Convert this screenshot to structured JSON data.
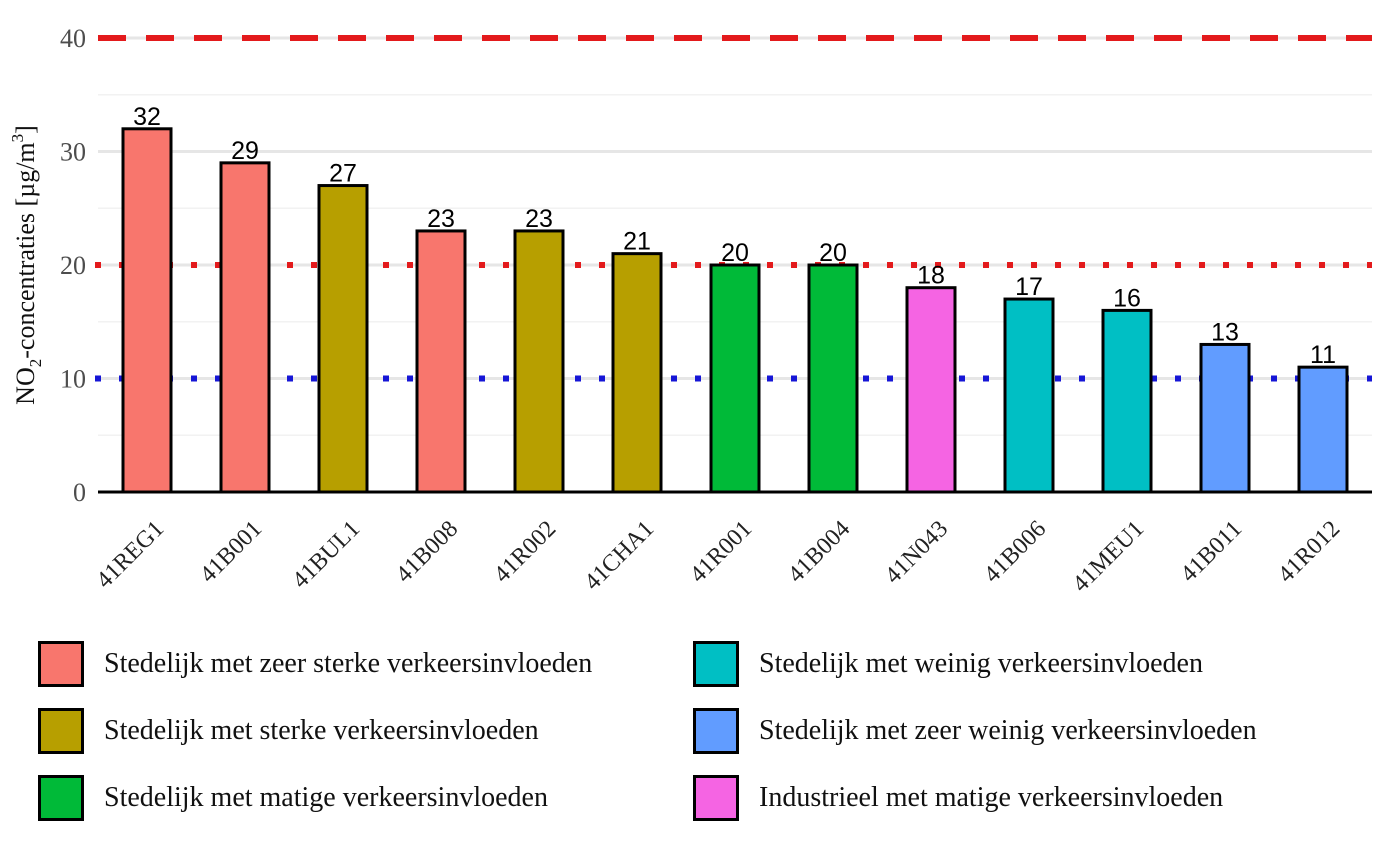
{
  "chart_data": {
    "type": "bar",
    "ylabel_main": "NO",
    "ylabel_sub": "2",
    "ylabel_mid": "-concentraties [µg/m",
    "ylabel_sup": "3",
    "ylabel_end": "]",
    "ylim": [
      0,
      40
    ],
    "yticks": [
      "0",
      "10",
      "20",
      "30",
      "40"
    ],
    "grid": true,
    "categories": [
      "41REG1",
      "41B001",
      "41BUL1",
      "41B008",
      "41R002",
      "41CHA1",
      "41R001",
      "41B004",
      "41N043",
      "41B006",
      "41MEU1",
      "41B011",
      "41R012"
    ],
    "values": [
      32,
      29,
      27,
      23,
      23,
      21,
      20,
      20,
      18,
      17,
      16,
      13,
      11
    ],
    "data_labels": [
      "32",
      "29",
      "27",
      "23",
      "23",
      "21",
      "20",
      "20",
      "18",
      "17",
      "16",
      "13",
      "11"
    ],
    "bar_groups": [
      0,
      0,
      1,
      0,
      1,
      1,
      2,
      2,
      5,
      3,
      3,
      4,
      4
    ],
    "reference_lines": [
      {
        "value": 40,
        "color": "#e31a1c",
        "style": "dashed"
      },
      {
        "value": 20,
        "color": "#e31a1c",
        "style": "dotted"
      },
      {
        "value": 10,
        "color": "#1515d6",
        "style": "dotted"
      }
    ],
    "legend": [
      {
        "label": "Stedelijk met zeer sterke verkeersinvloeden",
        "color": "#f8766d"
      },
      {
        "label": "Stedelijk met sterke verkeersinvloeden",
        "color": "#b79f00"
      },
      {
        "label": "Stedelijk met matige verkeersinvloeden",
        "color": "#00ba38"
      },
      {
        "label": "Stedelijk met weinig verkeersinvloeden",
        "color": "#00bfc4"
      },
      {
        "label": "Stedelijk met zeer weinig verkeersinvloeden",
        "color": "#619cff"
      },
      {
        "label": "Industrieel met matige verkeersinvloeden",
        "color": "#f564e3"
      }
    ],
    "legend_placement": "bottom"
  }
}
